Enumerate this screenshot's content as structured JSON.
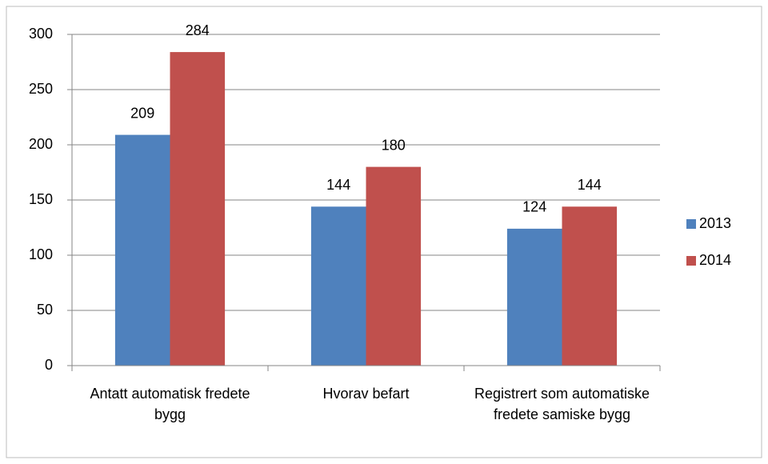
{
  "chart_data": {
    "type": "bar",
    "categories": [
      "Antatt automatisk fredete bygg",
      "Hvorav befart",
      "Registrert som automatiske fredete samiske bygg"
    ],
    "series": [
      {
        "name": "2013",
        "color": "#4f81bd",
        "values": [
          209,
          144,
          124
        ]
      },
      {
        "name": "2014",
        "color": "#c0504d",
        "values": [
          284,
          180,
          144
        ]
      }
    ],
    "ylim": [
      0,
      300
    ],
    "yticks": [
      0,
      50,
      100,
      150,
      200,
      250,
      300
    ],
    "grid": true,
    "legend": "right"
  }
}
